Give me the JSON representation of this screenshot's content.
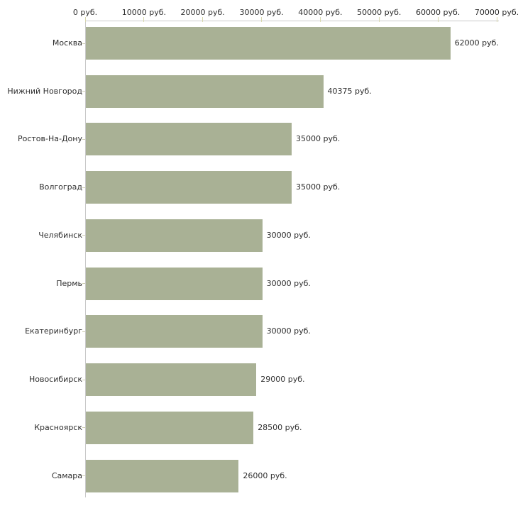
{
  "chart_data": {
    "type": "bar",
    "orientation": "horizontal",
    "title": "",
    "xlabel": "",
    "ylabel": "",
    "unit": "руб.",
    "categories": [
      "Москва",
      "Нижний Новгород",
      "Ростов-На-Дону",
      "Волгоград",
      "Челябинск",
      "Пермь",
      "Екатеринбург",
      "Новосибирск",
      "Красноярск",
      "Самара"
    ],
    "values": [
      62000,
      40375,
      35000,
      35000,
      30000,
      30000,
      30000,
      29000,
      28500,
      26000
    ],
    "value_labels": [
      "62000 руб.",
      "40375 руб.",
      "35000 руб.",
      "35000 руб.",
      "30000 руб.",
      "30000 руб.",
      "30000 руб.",
      "29000 руб.",
      "28500 руб.",
      "26000 руб."
    ],
    "x_axis": {
      "position": "top",
      "min": 0,
      "max": 70000,
      "ticks": [
        0,
        10000,
        20000,
        30000,
        40000,
        50000,
        60000,
        70000
      ],
      "tick_labels": [
        "0 руб.",
        "10000 руб.",
        "20000 руб.",
        "30000 руб.",
        "40000 руб.",
        "50000 руб.",
        "60000 руб.",
        "70000 руб."
      ]
    },
    "grid": false,
    "legend": null,
    "colors": {
      "bar_fill": "#a9b195",
      "axis_line": "#c9c9c9",
      "x_tick": "#d8d8ae",
      "category_tick": "#cfcfb4",
      "text": "#2e2e2e",
      "background": "#ffffff"
    }
  }
}
